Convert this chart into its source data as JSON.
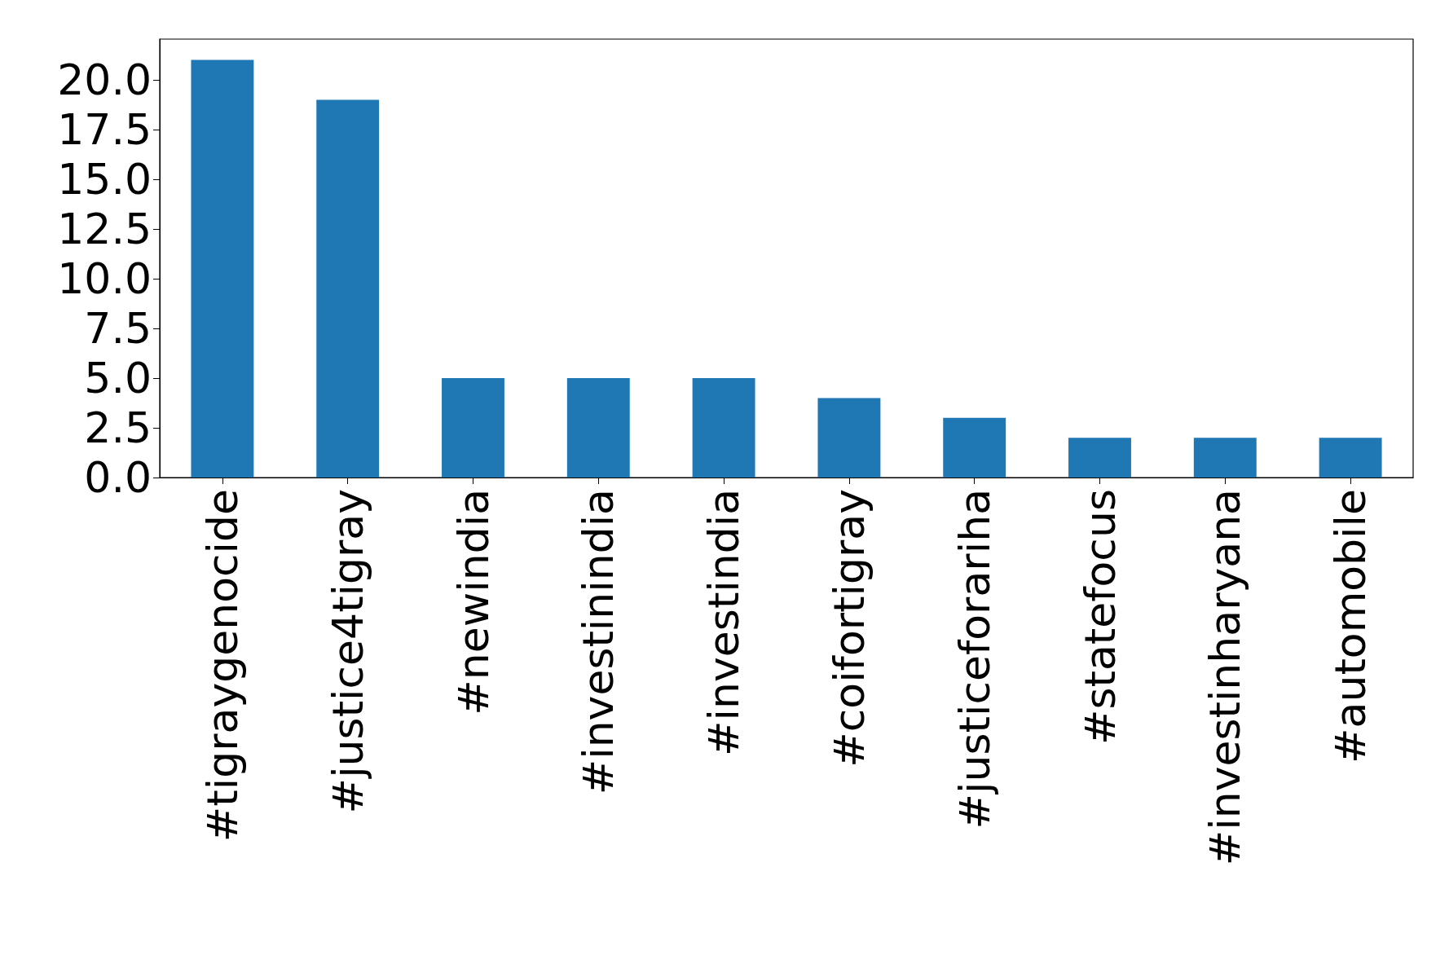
{
  "chart_data": {
    "type": "bar",
    "categories": [
      "#tigraygenocide",
      "#justice4tigray",
      "#newindia",
      "#investinindia",
      "#investindia",
      "#coifortigray",
      "#justiceforariha",
      "#statefocus",
      "#investinharyana",
      "#automobile"
    ],
    "values": [
      21,
      19,
      5,
      5,
      5,
      4,
      3,
      2,
      2,
      2
    ],
    "color": "#1f77b4",
    "ylim": [
      0,
      22.05
    ],
    "yticks": [
      {
        "value": 0,
        "label": "0.0"
      },
      {
        "value": 2.5,
        "label": "2.5"
      },
      {
        "value": 5,
        "label": "5.0"
      },
      {
        "value": 7.5,
        "label": "7.5"
      },
      {
        "value": 10,
        "label": "10.0"
      },
      {
        "value": 12.5,
        "label": "12.5"
      },
      {
        "value": 15,
        "label": "15.0"
      },
      {
        "value": 17.5,
        "label": "17.5"
      },
      {
        "value": 20,
        "label": "20.0"
      }
    ],
    "grid": false
  }
}
